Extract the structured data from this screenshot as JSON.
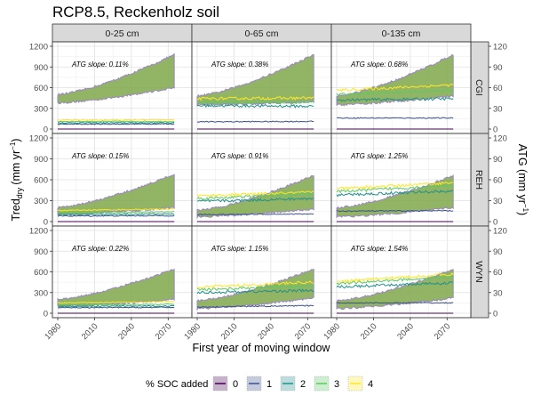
{
  "chart_data": {
    "type": "area",
    "title": "RCP8.5, Reckenholz soil",
    "xlabel": "First year of moving window",
    "ylabel_left": "Tred_dry (mm yr^-1)",
    "ylabel_left_main": "Tred",
    "ylabel_left_sub": "dry",
    "ylabel_left_unit": "(mm yr",
    "ylabel_left_sup": "−1",
    "ylabel_left_close": ")",
    "ylabel_right": "ATG (mm yr^-1)",
    "ylabel_right_main": "ATG (mm yr",
    "ylabel_right_sup": "−1",
    "ylabel_right_close": ")",
    "xlim": [
      1980,
      2085
    ],
    "ylim_left": [
      0,
      1200
    ],
    "ylim_right": [
      0,
      120
    ],
    "x_ticks": [
      "1980",
      "2010",
      "2040",
      "2070"
    ],
    "y_ticks_left": [
      "0",
      "300",
      "600",
      "900",
      "1200"
    ],
    "y_ticks_right": [
      "0",
      "30",
      "60",
      "90",
      "120"
    ],
    "columns": [
      "0-25 cm",
      "0-65 cm",
      "0-135 cm"
    ],
    "rows": [
      "CGI",
      "REH",
      "WYN"
    ],
    "grid": true,
    "legend": {
      "title": "% SOC added",
      "position": "bottom",
      "entries": [
        {
          "label": "0",
          "color": "#440154"
        },
        {
          "label": "1",
          "color": "#3b528b"
        },
        {
          "label": "2",
          "color": "#21908c"
        },
        {
          "label": "3",
          "color": "#5dc863"
        },
        {
          "label": "4",
          "color": "#fde725"
        }
      ]
    },
    "band_color": "#7fa84a",
    "panels": [
      {
        "row": "CGI",
        "col": "0-25 cm",
        "annotation": "ATG slope: 0.11%",
        "tred": {
          "0": [
            0,
            0
          ],
          "1": [
            70,
            75
          ],
          "2": [
            90,
            90
          ],
          "3": [
            110,
            110
          ],
          "4": [
            130,
            135
          ]
        },
        "atg_band": {
          "lower_start": 38,
          "lower_end": 60,
          "upper_start": 50,
          "upper_end": 108
        }
      },
      {
        "row": "CGI",
        "col": "0-65 cm",
        "annotation": "ATG slope: 0.38%",
        "tred": {
          "0": [
            0,
            0
          ],
          "1": [
            105,
            110
          ],
          "2": [
            340,
            330
          ],
          "3": [
            390,
            380
          ],
          "4": [
            440,
            450
          ]
        },
        "atg_band": {
          "lower_start": 35,
          "lower_end": 40,
          "upper_start": 48,
          "upper_end": 108
        }
      },
      {
        "row": "CGI",
        "col": "0-135 cm",
        "annotation": "ATG slope: 0.68%",
        "tred": {
          "0": [
            0,
            0
          ],
          "1": [
            160,
            160
          ],
          "2": [
            420,
            440
          ],
          "3": [
            500,
            560
          ],
          "4": [
            560,
            640
          ]
        },
        "atg_band": {
          "lower_start": 35,
          "lower_end": 48,
          "upper_start": 48,
          "upper_end": 108
        }
      },
      {
        "row": "REH",
        "col": "0-25 cm",
        "annotation": "ATG slope: 0.15%",
        "tred": {
          "0": [
            0,
            0
          ],
          "1": [
            80,
            85
          ],
          "2": [
            100,
            110
          ],
          "3": [
            120,
            140
          ],
          "4": [
            160,
            180
          ]
        },
        "atg_band": {
          "lower_start": 10,
          "lower_end": 20,
          "upper_start": 20,
          "upper_end": 68
        }
      },
      {
        "row": "REH",
        "col": "0-65 cm",
        "annotation": "ATG slope: 0.91%",
        "tred": {
          "0": [
            0,
            0
          ],
          "1": [
            100,
            110
          ],
          "2": [
            290,
            330
          ],
          "3": [
            330,
            400
          ],
          "4": [
            370,
            420
          ]
        },
        "atg_band": {
          "lower_start": 7,
          "lower_end": 18,
          "upper_start": 16,
          "upper_end": 66
        }
      },
      {
        "row": "REH",
        "col": "0-135 cm",
        "annotation": "ATG slope: 1.25%",
        "tred": {
          "0": [
            0,
            0
          ],
          "1": [
            150,
            155
          ],
          "2": [
            380,
            440
          ],
          "3": [
            430,
            520
          ],
          "4": [
            470,
            560
          ]
        },
        "atg_band": {
          "lower_start": 7,
          "lower_end": 20,
          "upper_start": 20,
          "upper_end": 66
        }
      },
      {
        "row": "WYN",
        "col": "0-25 cm",
        "annotation": "ATG slope: 0.22%",
        "tred": {
          "0": [
            0,
            0
          ],
          "1": [
            80,
            85
          ],
          "2": [
            100,
            105
          ],
          "3": [
            120,
            130
          ],
          "4": [
            150,
            170
          ]
        },
        "atg_band": {
          "lower_start": 10,
          "lower_end": 20,
          "upper_start": 20,
          "upper_end": 64
        }
      },
      {
        "row": "WYN",
        "col": "0-65 cm",
        "annotation": "ATG slope: 1.15%",
        "tred": {
          "0": [
            0,
            0
          ],
          "1": [
            90,
            110
          ],
          "2": [
            300,
            330
          ],
          "3": [
            340,
            400
          ],
          "4": [
            380,
            450
          ]
        },
        "atg_band": {
          "lower_start": 7,
          "lower_end": 22,
          "upper_start": 18,
          "upper_end": 64
        }
      },
      {
        "row": "WYN",
        "col": "0-135 cm",
        "annotation": "ATG slope: 1.54%",
        "tred": {
          "0": [
            0,
            0
          ],
          "1": [
            150,
            150
          ],
          "2": [
            380,
            440
          ],
          "3": [
            430,
            530
          ],
          "4": [
            460,
            570
          ]
        },
        "atg_band": {
          "lower_start": 7,
          "lower_end": 22,
          "upper_start": 18,
          "upper_end": 64
        }
      }
    ]
  }
}
